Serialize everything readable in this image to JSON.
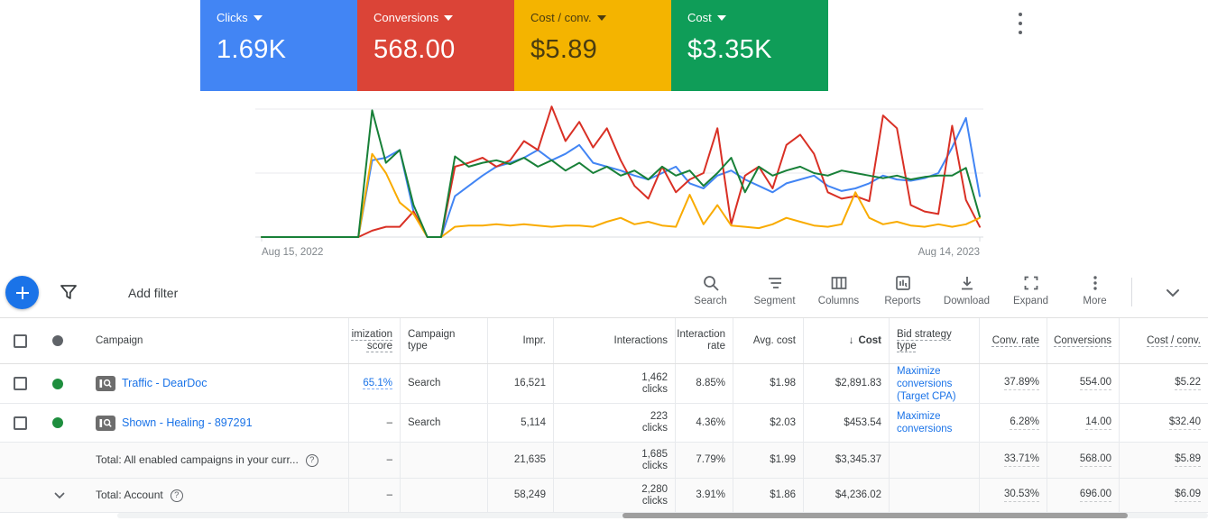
{
  "scorecards": [
    {
      "label": "Clicks",
      "value": "1.69K",
      "bg": "#4285F4",
      "fg": "#ffffff"
    },
    {
      "label": "Conversions",
      "value": "568.00",
      "bg": "#DB4437",
      "fg": "#ffffff"
    },
    {
      "label": "Cost / conv.",
      "value": "$5.89",
      "bg": "#F4B400",
      "fg": "#4a3c10"
    },
    {
      "label": "Cost",
      "value": "$3.35K",
      "bg": "#0F9D58",
      "fg": "#ffffff"
    }
  ],
  "chart_data": {
    "type": "line",
    "x_start_label": "Aug 15, 2022",
    "x_end_label": "Aug 14, 2023",
    "x_unit": "week",
    "ylim": [
      0,
      105
    ],
    "gridlines": [
      0,
      50,
      100
    ],
    "legend_visible": false,
    "series": [
      {
        "name": "Clicks",
        "color": "#4285F4",
        "values": [
          0,
          0,
          0,
          0,
          0,
          0,
          0,
          0,
          60,
          62,
          68,
          20,
          0,
          0,
          32,
          40,
          48,
          55,
          58,
          62,
          68,
          60,
          65,
          72,
          58,
          55,
          52,
          48,
          45,
          50,
          55,
          42,
          38,
          48,
          52,
          45,
          40,
          35,
          42,
          45,
          48,
          40,
          36,
          38,
          42,
          48,
          45,
          44,
          46,
          50,
          70,
          93,
          32
        ]
      },
      {
        "name": "Conversions",
        "color": "#D93025",
        "values": [
          0,
          0,
          0,
          0,
          0,
          0,
          0,
          0,
          5,
          8,
          8,
          20,
          0,
          0,
          55,
          58,
          62,
          55,
          60,
          75,
          68,
          102,
          75,
          90,
          70,
          85,
          60,
          40,
          30,
          55,
          35,
          45,
          50,
          85,
          10,
          48,
          55,
          38,
          72,
          80,
          65,
          35,
          30,
          32,
          28,
          95,
          85,
          25,
          20,
          18,
          87,
          29,
          8
        ]
      },
      {
        "name": "Cost / conv.",
        "color": "#F9AB00",
        "values": [
          0,
          0,
          0,
          0,
          0,
          0,
          0,
          0,
          65,
          50,
          27,
          18,
          0,
          0,
          8,
          9,
          9,
          10,
          9,
          10,
          9,
          8,
          9,
          9,
          8,
          12,
          15,
          10,
          12,
          9,
          8,
          33,
          10,
          25,
          9,
          8,
          7,
          10,
          15,
          12,
          9,
          8,
          10,
          35,
          15,
          10,
          12,
          9,
          8,
          10,
          8,
          10,
          15
        ]
      },
      {
        "name": "Cost",
        "color": "#188038",
        "values": [
          0,
          0,
          0,
          0,
          0,
          0,
          0,
          0,
          99,
          58,
          68,
          25,
          0,
          0,
          63,
          55,
          58,
          60,
          57,
          62,
          55,
          60,
          52,
          58,
          50,
          55,
          48,
          52,
          45,
          55,
          48,
          52,
          40,
          50,
          62,
          35,
          55,
          48,
          52,
          55,
          50,
          48,
          52,
          50,
          48,
          46,
          48,
          45,
          47,
          48,
          48,
          54,
          16
        ]
      }
    ]
  },
  "toolbar": {
    "add_filter_label": "Add filter",
    "tools": [
      {
        "name": "search",
        "label": "Search"
      },
      {
        "name": "segment",
        "label": "Segment"
      },
      {
        "name": "columns",
        "label": "Columns"
      },
      {
        "name": "reports",
        "label": "Reports"
      },
      {
        "name": "download",
        "label": "Download"
      },
      {
        "name": "expand",
        "label": "Expand"
      },
      {
        "name": "more",
        "label": "More"
      }
    ]
  },
  "icons": {
    "help": "?"
  },
  "table": {
    "headers": {
      "campaign": "Campaign",
      "opt_score": "imization score",
      "campaign_type": "Campaign type",
      "impr": "Impr.",
      "interactions": "Interactions",
      "interaction_rate": "Interaction rate",
      "avg_cost": "Avg. cost",
      "sort_indicator": "↓",
      "cost": "Cost",
      "bid_strategy_type": "Bid strategy type",
      "conv_rate": "Conv. rate",
      "conversions": "Conversions",
      "cost_per_conv": "Cost / conv."
    },
    "rows": [
      {
        "type": "campaign",
        "status_color": "#1e8e3e",
        "name": "Traffic - DearDoc",
        "opt_score": "65.1%",
        "campaign_type": "Search",
        "impr": "16,521",
        "interactions": "1,462",
        "interactions_unit": "clicks",
        "interaction_rate": "8.85%",
        "avg_cost": "$1.98",
        "cost": "$2,891.83",
        "bid_strategy": "Maximize conversions (Target CPA)",
        "conv_rate": "37.89%",
        "conversions": "554.00",
        "cost_per_conv": "$5.22"
      },
      {
        "type": "campaign2",
        "status_color": "#1e8e3e",
        "name": "Shown - Healing - 897291",
        "opt_score": "–",
        "campaign_type": "Search",
        "impr": "5,114",
        "interactions": "223",
        "interactions_unit": "clicks",
        "interaction_rate": "4.36%",
        "avg_cost": "$2.03",
        "cost": "$453.54",
        "bid_strategy": "Maximize conversions",
        "conv_rate": "6.28%",
        "conversions": "14.00",
        "cost_per_conv": "$32.40"
      },
      {
        "type": "total",
        "label": "Total: All enabled campaigns in your curr...",
        "opt_score": "–",
        "campaign_type": "",
        "impr": "21,635",
        "interactions": "1,685",
        "interactions_unit": "clicks",
        "interaction_rate": "7.79%",
        "avg_cost": "$1.99",
        "cost": "$3,345.37",
        "bid_strategy": "",
        "conv_rate": "33.71%",
        "conversions": "568.00",
        "cost_per_conv": "$5.89"
      },
      {
        "type": "total_account",
        "label": "Total: Account",
        "opt_score": "–",
        "campaign_type": "",
        "impr": "58,249",
        "interactions": "2,280",
        "interactions_unit": "clicks",
        "interaction_rate": "3.91%",
        "avg_cost": "$1.86",
        "cost": "$4,236.02",
        "bid_strategy": "",
        "conv_rate": "30.53%",
        "conversions": "696.00",
        "cost_per_conv": "$6.09"
      }
    ]
  }
}
